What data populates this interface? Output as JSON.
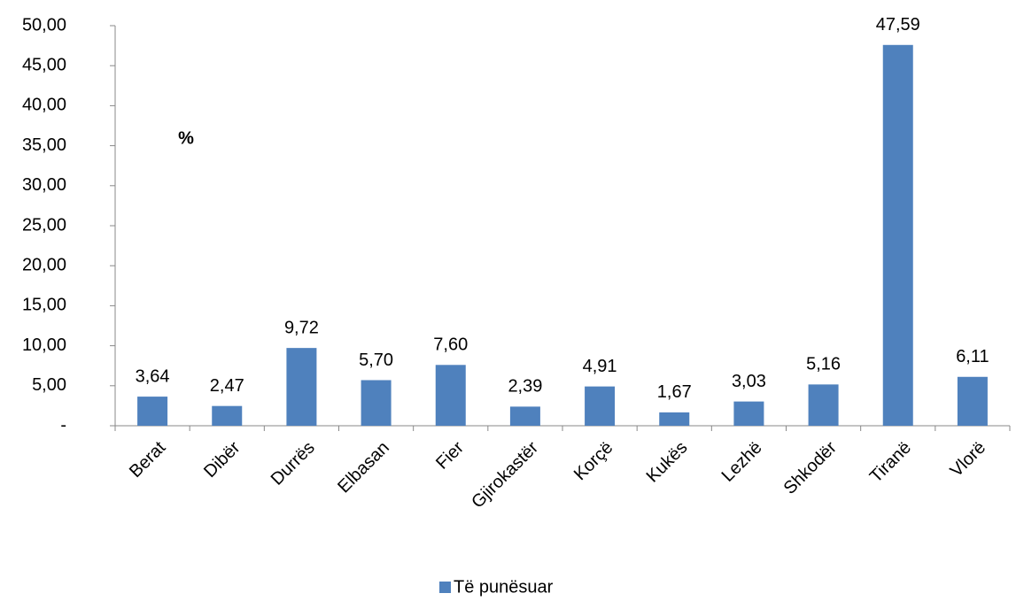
{
  "chart_data": {
    "type": "bar",
    "y_label": "%",
    "categories": [
      "Berat",
      "Dibër",
      "Durrës",
      "Elbasan",
      "Fier",
      "Gjirokastër",
      "Korçë",
      "Kukës",
      "Lezhë",
      "Shkodër",
      "Tiranë",
      "Vlorë"
    ],
    "series": [
      {
        "name": "Të punësuar",
        "color": "#4f81bd",
        "values": [
          3.64,
          2.47,
          9.72,
          5.7,
          7.6,
          2.39,
          4.91,
          1.67,
          3.03,
          5.16,
          47.59,
          6.11
        ],
        "value_labels": [
          "3,64",
          "2,47",
          "9,72",
          "5,70",
          "7,60",
          "2,39",
          "4,91",
          "1,67",
          "3,03",
          "5,16",
          "47,59",
          "6,11"
        ]
      }
    ],
    "ylim": [
      0,
      50
    ],
    "yticks": [
      {
        "value": 0,
        "label": "-"
      },
      {
        "value": 5,
        "label": "5,00"
      },
      {
        "value": 10,
        "label": "10,00"
      },
      {
        "value": 15,
        "label": "15,00"
      },
      {
        "value": 20,
        "label": "20,00"
      },
      {
        "value": 25,
        "label": "25,00"
      },
      {
        "value": 30,
        "label": "30,00"
      },
      {
        "value": 35,
        "label": "35,00"
      },
      {
        "value": 40,
        "label": "40,00"
      },
      {
        "value": 45,
        "label": "45,00"
      },
      {
        "value": 50,
        "label": "50,00"
      }
    ],
    "grid": false,
    "legend": "bottom"
  }
}
